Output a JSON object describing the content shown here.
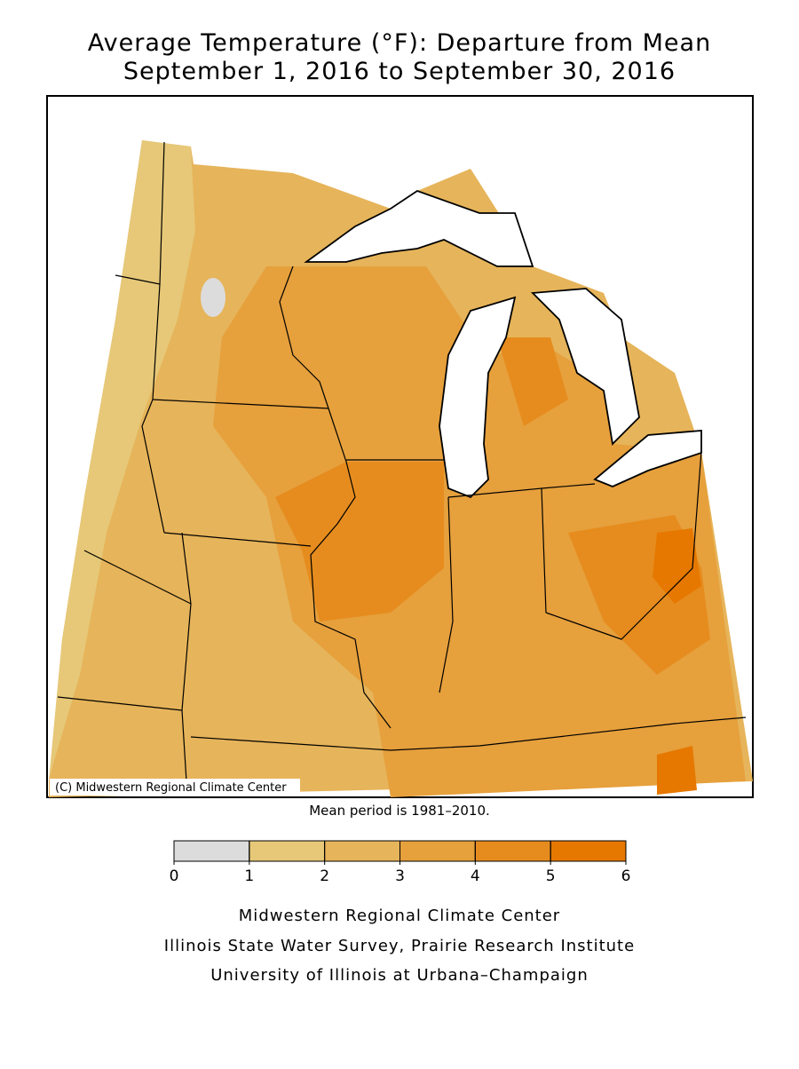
{
  "header": {
    "title_line1": "Average Temperature (°F): Departure from Mean",
    "title_line2": "September 1, 2016 to September 30, 2016"
  },
  "map": {
    "credit": "(C) Midwestern Regional Climate Center",
    "note": "Mean period is 1981–2010."
  },
  "legend": {
    "ticks": [
      0,
      1,
      2,
      3,
      4,
      5,
      6
    ],
    "colors": [
      "#dcdcdc",
      "#e6c878",
      "#e6b45a",
      "#e6a03c",
      "#e68c1e",
      "#e67800"
    ]
  },
  "footer": {
    "lines": [
      "Midwestern Regional Climate Center",
      "Illinois State Water Survey, Prairie Research Institute",
      "University of Illinois at Urbana–Champaign"
    ]
  }
}
